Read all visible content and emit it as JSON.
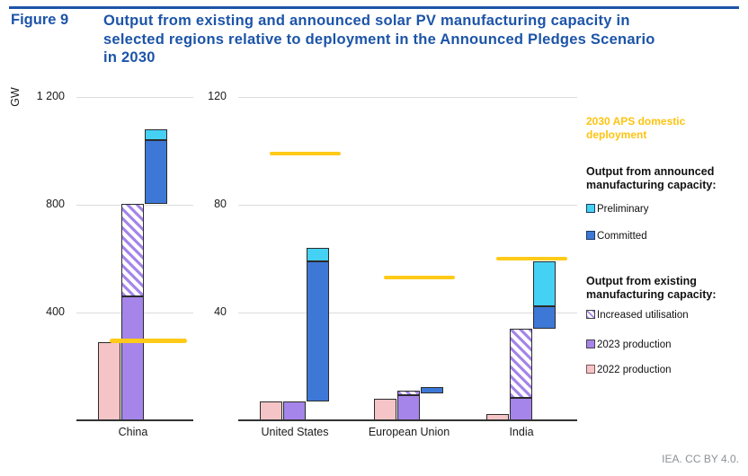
{
  "figure": {
    "label": "Figure 9",
    "title_lines": [
      "Output from existing and announced solar PV manufacturing capacity in",
      "selected regions relative to deployment in the Announced Pledges Scenario",
      "in 2030"
    ]
  },
  "axis": {
    "unit": "GW"
  },
  "attribution": "IEA. CC BY 4.0.",
  "colors": {
    "title_blue": "#1c54a8",
    "preliminary": "#45d1f4",
    "committed": "#3d78d6",
    "production_2023": "#a585ea",
    "production_2022": "#f5c4c6",
    "increased_utilisation_hatch": "#a585ea",
    "aps_deployment_yellow": "#ffca18",
    "gridline": "#dcdcdc"
  },
  "legend": {
    "deployment_label": "2030 APS domestic deployment",
    "announced_header": "Output from announced manufacturing capacity:",
    "announced_items": [
      {
        "label": "Preliminary",
        "swatch": "preliminary-swatch"
      },
      {
        "label": "Committed",
        "swatch": "committed-swatch"
      }
    ],
    "existing_header": "Output from existing manufacturing capacity:",
    "existing_items": [
      {
        "label": "Increased utilisation",
        "swatch": "increased-utilisation-swatch"
      },
      {
        "label": "2023 production",
        "swatch": "2023-production-swatch"
      },
      {
        "label": "2022 production",
        "swatch": "2022-production-swatch"
      }
    ]
  },
  "chart_data": [
    {
      "type": "bar",
      "panel": "left",
      "unit": "GW",
      "ylim": [
        0,
        1200
      ],
      "yticks": [
        {
          "value": 400,
          "label": "400"
        },
        {
          "value": 800,
          "label": "800"
        },
        {
          "value": 1200,
          "label": "1 200"
        }
      ],
      "categories": [
        "China"
      ],
      "regions": [
        {
          "name": "China",
          "production_2022": 290,
          "production_2023": 460,
          "increased_utilisation": [
            460,
            805
          ],
          "committed": [
            805,
            1040
          ],
          "preliminary": [
            1040,
            1080
          ],
          "aps_deployment_2030": 295
        }
      ]
    },
    {
      "type": "bar",
      "panel": "right",
      "unit": "GW",
      "ylim": [
        0,
        120
      ],
      "yticks": [
        {
          "value": 40,
          "label": "40"
        },
        {
          "value": 80,
          "label": "80"
        },
        {
          "value": 120,
          "label": "120"
        }
      ],
      "categories": [
        "United States",
        "European Union",
        "India"
      ],
      "regions": [
        {
          "name": "United States",
          "production_2022": 7,
          "production_2023": 7,
          "increased_utilisation": null,
          "committed": [
            7,
            59
          ],
          "preliminary": [
            59,
            64
          ],
          "aps_deployment_2030": 99
        },
        {
          "name": "European Union",
          "production_2022": 8,
          "production_2023": 9.5,
          "increased_utilisation": [
            9.5,
            11
          ],
          "committed": [
            10,
            12.5
          ],
          "preliminary": null,
          "aps_deployment_2030": 53
        },
        {
          "name": "India",
          "production_2022": 2.5,
          "production_2023": 8.5,
          "increased_utilisation": [
            8.5,
            34
          ],
          "committed": [
            34,
            42.5
          ],
          "preliminary": [
            42.5,
            59
          ],
          "aps_deployment_2030": 60
        }
      ]
    }
  ]
}
